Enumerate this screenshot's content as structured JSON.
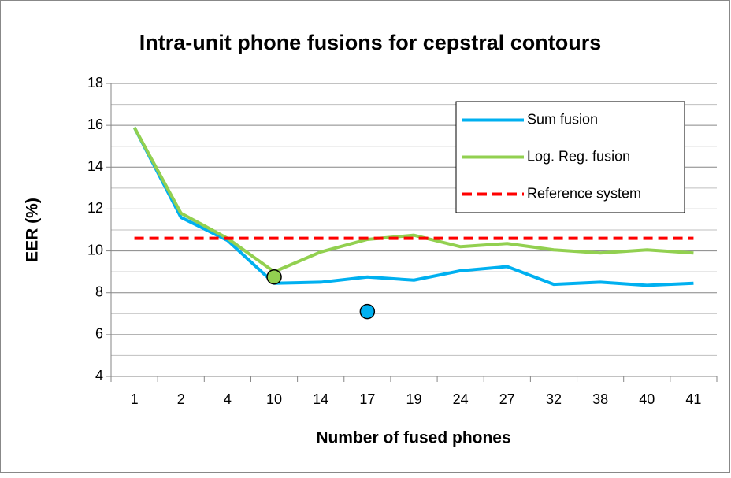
{
  "chart_data": {
    "type": "line",
    "title": "Intra-unit phone fusions for cepstral contours",
    "x_label": "Number of fused phones",
    "y_label": "EER (%)",
    "categories": [
      "1",
      "2",
      "4",
      "10",
      "14",
      "17",
      "19",
      "24",
      "27",
      "32",
      "38",
      "40",
      "41"
    ],
    "series": [
      {
        "name": "Sum fusion",
        "color": "#00b0f0",
        "dashed": false,
        "values": [
          15.9,
          11.6,
          10.5,
          8.45,
          8.5,
          8.75,
          8.6,
          9.05,
          9.25,
          8.4,
          8.5,
          8.35,
          8.45
        ]
      },
      {
        "name": "Log. Reg. fusion",
        "color": "#92d050",
        "dashed": false,
        "values": [
          15.9,
          11.8,
          10.6,
          9.0,
          9.95,
          10.55,
          10.75,
          10.2,
          10.35,
          10.05,
          9.9,
          10.05,
          9.9
        ]
      },
      {
        "name": "Reference system",
        "color": "#ff0000",
        "dashed": true,
        "values": [
          10.6,
          10.6,
          10.6,
          10.6,
          10.6,
          10.6,
          10.6,
          10.6,
          10.6,
          10.6,
          10.6,
          10.6,
          10.6
        ]
      }
    ],
    "markers": [
      {
        "x": "10",
        "y": 8.75,
        "color": "#92d050"
      },
      {
        "x": "17",
        "y": 7.1,
        "color": "#00b0f0"
      }
    ],
    "ylim": [
      4,
      18
    ],
    "yticks": [
      4,
      6,
      8,
      10,
      12,
      14,
      16,
      18
    ],
    "minor_gridlines": [
      5,
      7,
      9,
      11,
      13,
      15,
      17
    ],
    "grid": true,
    "legend": "top-right"
  }
}
